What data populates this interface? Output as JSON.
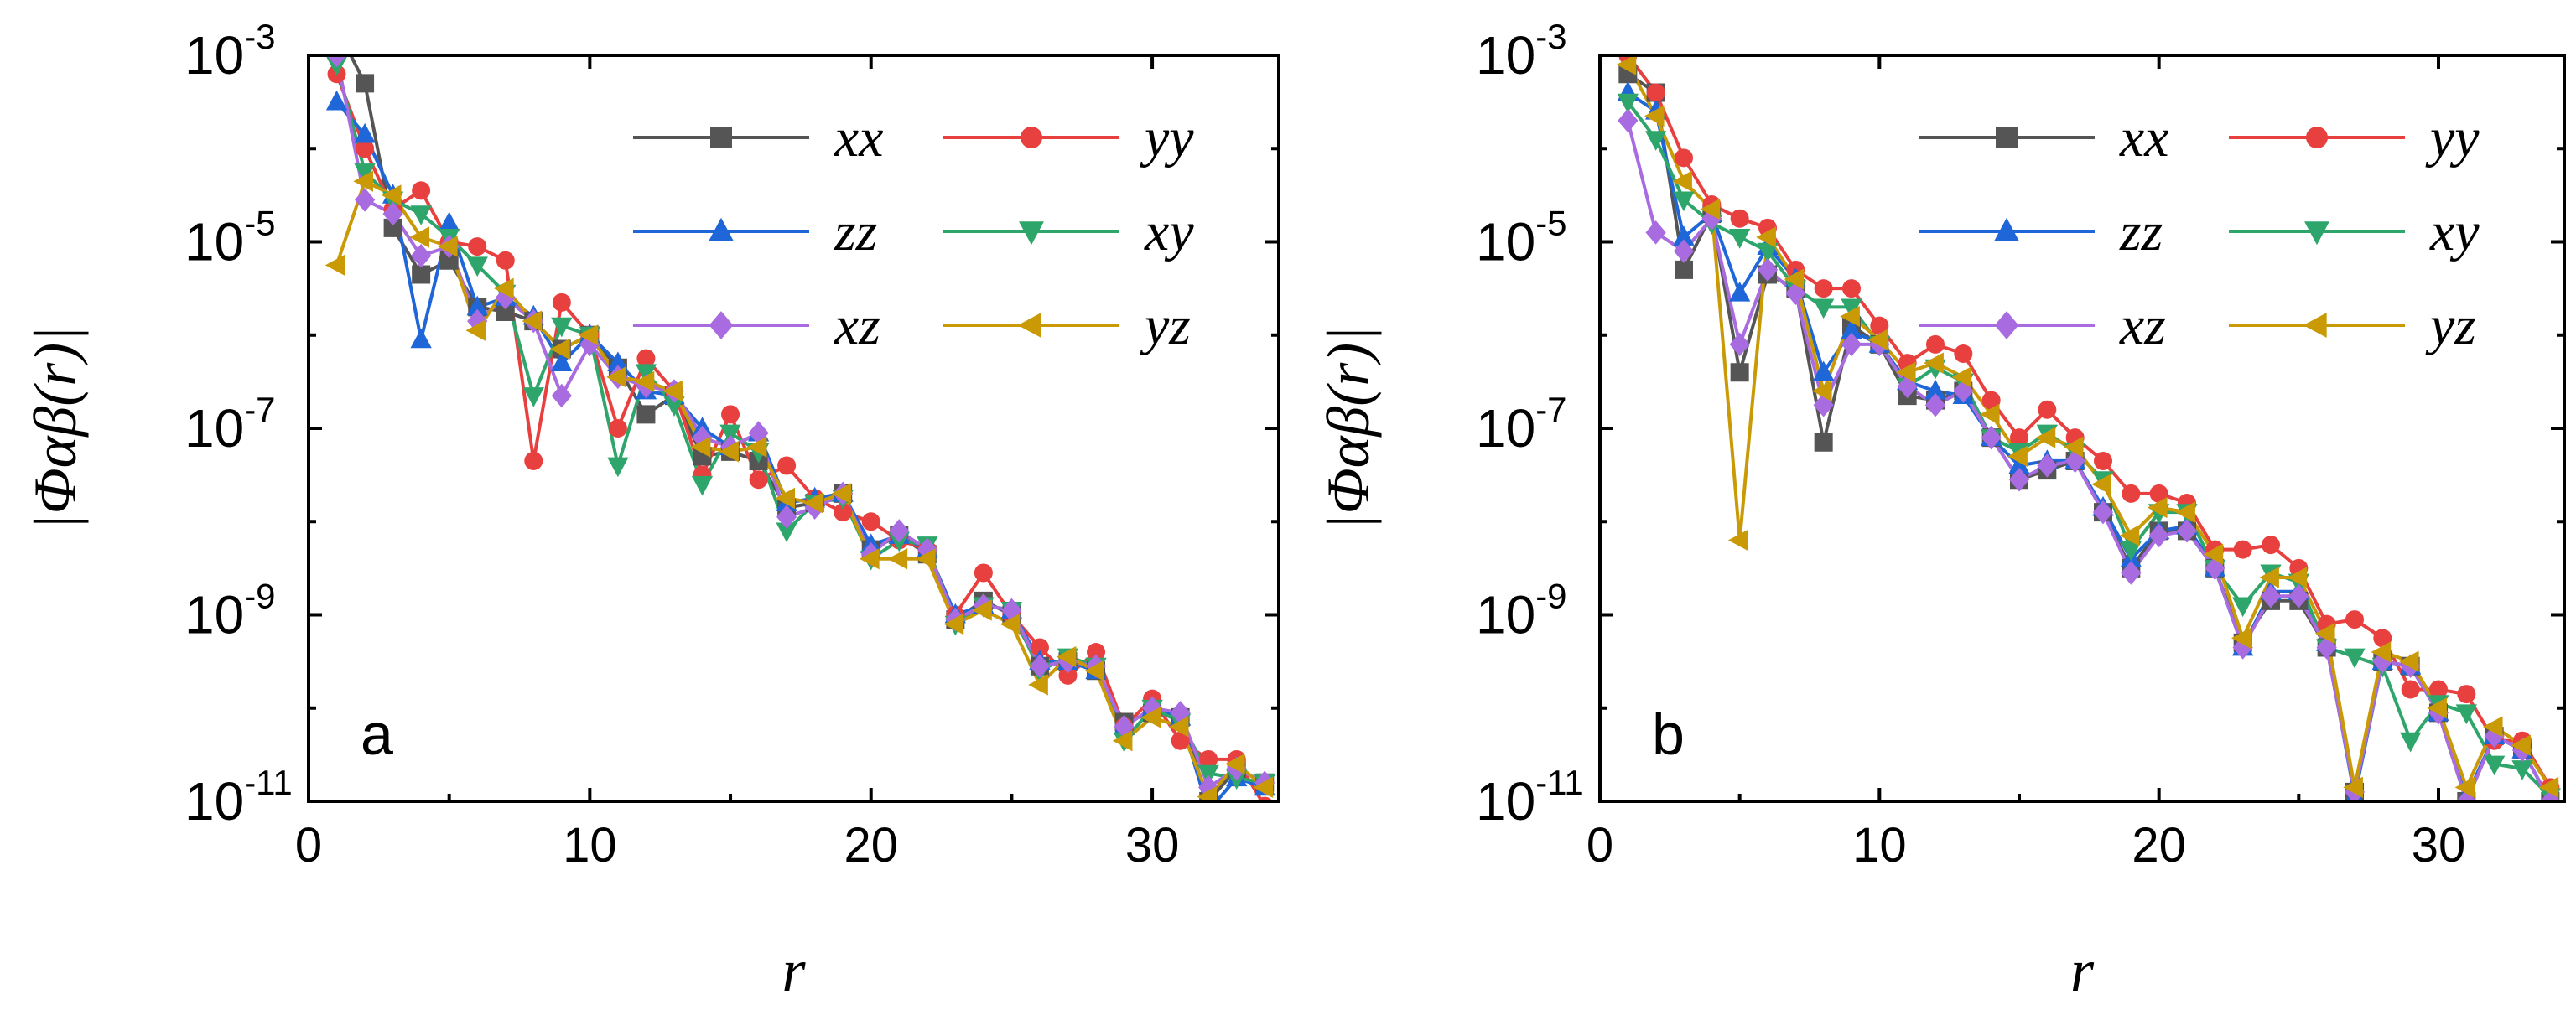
{
  "chart_data": [
    {
      "type": "line",
      "panel_label": "a",
      "xlabel": "r",
      "ylabel": "|Φαβ(r)|",
      "yscale": "log",
      "xlim": [
        0,
        34.5
      ],
      "ylim_exponent": [
        -11,
        -3
      ],
      "xticks": [
        0,
        10,
        20,
        30
      ],
      "xtick_labels": [
        "0",
        "10",
        "20",
        "30"
      ],
      "yticks_exponent": [
        -11,
        -9,
        -7,
        -5,
        -3
      ],
      "ytick_labels": [
        {
          "base": "10",
          "exp": "-11"
        },
        {
          "base": "10",
          "exp": "-9"
        },
        {
          "base": "10",
          "exp": "-7"
        },
        {
          "base": "10",
          "exp": "-5"
        },
        {
          "base": "10",
          "exp": "-3"
        }
      ],
      "legend_position": "top-right",
      "series": [
        {
          "name": "xx",
          "color": "#555555",
          "marker": "square",
          "x": [
            1,
            2,
            3,
            4,
            5,
            6,
            7,
            8,
            9,
            10,
            11,
            12,
            13,
            14,
            15,
            16,
            17,
            18,
            19,
            20,
            21,
            22,
            23,
            24,
            25,
            26,
            27,
            28,
            29,
            30,
            31,
            32,
            33,
            34
          ],
          "log10_values": [
            -2.7,
            -3.3,
            -4.85,
            -5.35,
            -5.2,
            -5.7,
            -5.75,
            -5.85,
            -6.15,
            -6.0,
            -6.35,
            -6.85,
            -6.65,
            -7.3,
            -7.25,
            -7.35,
            -7.85,
            -7.8,
            -7.7,
            -8.3,
            -8.15,
            -8.35,
            -9.05,
            -8.85,
            -9.0,
            -9.55,
            -9.5,
            -9.6,
            -10.15,
            -10.05,
            -10.1,
            -11.0,
            -10.65,
            -10.8
          ]
        },
        {
          "name": "yy",
          "color": "#e8403f",
          "marker": "circle",
          "x": [
            1,
            2,
            3,
            4,
            5,
            6,
            7,
            8,
            9,
            10,
            11,
            12,
            13,
            14,
            15,
            16,
            17,
            18,
            19,
            20,
            21,
            22,
            23,
            24,
            25,
            26,
            27,
            28,
            29,
            30,
            31,
            32,
            33,
            34
          ],
          "log10_values": [
            -3.2,
            -4.0,
            -4.65,
            -4.45,
            -5.0,
            -5.05,
            -5.2,
            -7.35,
            -5.65,
            -6.0,
            -7.0,
            -6.25,
            -6.6,
            -7.5,
            -6.85,
            -7.55,
            -7.4,
            -7.75,
            -7.9,
            -8.0,
            -8.2,
            -8.3,
            -9.0,
            -8.55,
            -9.0,
            -9.35,
            -9.65,
            -9.4,
            -10.2,
            -9.9,
            -10.35,
            -10.55,
            -10.55,
            -11.05
          ]
        },
        {
          "name": "zz",
          "color": "#1f66d9",
          "marker": "triangle-up",
          "x": [
            1,
            2,
            3,
            4,
            5,
            6,
            7,
            8,
            9,
            10,
            11,
            12,
            13,
            14,
            15,
            16,
            17,
            18,
            19,
            20,
            21,
            22,
            23,
            24,
            25,
            26,
            27,
            28,
            29,
            30,
            31,
            32,
            33,
            34
          ],
          "log10_values": [
            -3.5,
            -3.85,
            -4.5,
            -6.05,
            -4.8,
            -5.7,
            -5.6,
            -5.8,
            -6.3,
            -6.0,
            -6.3,
            -6.6,
            -6.65,
            -7.0,
            -7.2,
            -7.05,
            -7.8,
            -7.75,
            -7.7,
            -8.25,
            -8.15,
            -8.3,
            -9.0,
            -8.9,
            -8.95,
            -9.5,
            -9.5,
            -9.6,
            -10.2,
            -10.0,
            -10.1,
            -11.1,
            -10.75,
            -10.85
          ]
        },
        {
          "name": "xy",
          "color": "#2ea66b",
          "marker": "triangle-down",
          "x": [
            1,
            2,
            3,
            4,
            5,
            6,
            7,
            8,
            9,
            10,
            11,
            12,
            13,
            14,
            15,
            16,
            17,
            18,
            19,
            20,
            21,
            22,
            23,
            24,
            25,
            26,
            27,
            28,
            29,
            30,
            31,
            32,
            33,
            34
          ],
          "log10_values": [
            -3.1,
            -4.25,
            -4.55,
            -4.7,
            -4.95,
            -5.25,
            -5.55,
            -6.65,
            -5.9,
            -6.0,
            -7.4,
            -6.4,
            -6.75,
            -7.6,
            -7.05,
            -7.25,
            -8.1,
            -7.8,
            -7.75,
            -8.4,
            -8.2,
            -8.25,
            -9.1,
            -8.9,
            -8.95,
            -9.6,
            -9.45,
            -9.55,
            -10.35,
            -10.0,
            -10.15,
            -10.7,
            -10.75,
            -10.8
          ]
        },
        {
          "name": "xz",
          "color": "#a86be0",
          "marker": "diamond",
          "x": [
            1,
            2,
            3,
            4,
            5,
            6,
            7,
            8,
            9,
            10,
            11,
            12,
            13,
            14,
            15,
            16,
            17,
            18,
            19,
            20,
            21,
            22,
            23,
            24,
            25,
            26,
            27,
            28,
            29,
            30,
            31,
            32,
            33,
            34
          ],
          "log10_values": [
            -3.0,
            -4.55,
            -4.7,
            -5.15,
            -5.05,
            -5.85,
            -5.6,
            -5.85,
            -6.65,
            -6.1,
            -6.45,
            -6.55,
            -6.6,
            -7.1,
            -7.2,
            -7.05,
            -7.95,
            -7.85,
            -7.7,
            -8.35,
            -8.1,
            -8.3,
            -9.05,
            -8.9,
            -8.95,
            -9.55,
            -9.5,
            -9.55,
            -10.2,
            -10.0,
            -10.05,
            -10.85,
            -10.65,
            -10.8
          ]
        },
        {
          "name": "yz",
          "color": "#c99a06",
          "marker": "triangle-left",
          "x": [
            1,
            2,
            3,
            4,
            5,
            6,
            7,
            8,
            9,
            10,
            11,
            12,
            13,
            14,
            15,
            16,
            17,
            18,
            19,
            20,
            21,
            22,
            23,
            24,
            25,
            26,
            27,
            28,
            29,
            30,
            31,
            32,
            33,
            34
          ],
          "log10_values": [
            -5.25,
            -4.35,
            -4.5,
            -4.95,
            -5.05,
            -5.95,
            -5.5,
            -5.85,
            -6.15,
            -6.0,
            -6.45,
            -6.5,
            -6.6,
            -7.2,
            -7.25,
            -7.2,
            -7.75,
            -7.8,
            -7.7,
            -8.4,
            -8.4,
            -8.4,
            -9.1,
            -8.95,
            -9.1,
            -9.75,
            -9.45,
            -9.6,
            -10.35,
            -10.1,
            -10.2,
            -10.95,
            -10.6,
            -10.85
          ]
        }
      ]
    },
    {
      "type": "line",
      "panel_label": "b",
      "xlabel": "r",
      "ylabel": "|Φαβ(r)|",
      "yscale": "log",
      "xlim": [
        0,
        34.5
      ],
      "ylim_exponent": [
        -11,
        -3
      ],
      "xticks": [
        0,
        10,
        20,
        30
      ],
      "xtick_labels": [
        "0",
        "10",
        "20",
        "30"
      ],
      "yticks_exponent": [
        -11,
        -9,
        -7,
        -5,
        -3
      ],
      "ytick_labels": [
        {
          "base": "10",
          "exp": "-11"
        },
        {
          "base": "10",
          "exp": "-9"
        },
        {
          "base": "10",
          "exp": "-7"
        },
        {
          "base": "10",
          "exp": "-5"
        },
        {
          "base": "10",
          "exp": "-3"
        }
      ],
      "legend_position": "top-right",
      "series": [
        {
          "name": "xx",
          "color": "#555555",
          "marker": "square",
          "x": [
            1,
            2,
            3,
            4,
            5,
            6,
            7,
            8,
            9,
            10,
            11,
            12,
            13,
            14,
            15,
            16,
            17,
            18,
            19,
            20,
            21,
            22,
            23,
            24,
            25,
            26,
            27,
            28,
            29,
            30,
            31,
            32,
            33,
            34
          ],
          "log10_values": [
            -3.2,
            -3.4,
            -5.3,
            -4.7,
            -6.4,
            -5.35,
            -5.5,
            -7.15,
            -5.9,
            -6.1,
            -6.65,
            -6.7,
            -6.6,
            -7.1,
            -7.55,
            -7.45,
            -7.35,
            -7.9,
            -8.5,
            -8.1,
            -8.1,
            -8.5,
            -9.3,
            -8.85,
            -8.85,
            -9.35,
            -10.9,
            -9.5,
            -9.55,
            -10.05,
            -11.0,
            -10.3,
            -10.45,
            -11.0
          ]
        },
        {
          "name": "yy",
          "color": "#e8403f",
          "marker": "circle",
          "x": [
            1,
            2,
            3,
            4,
            5,
            6,
            7,
            8,
            9,
            10,
            11,
            12,
            13,
            14,
            15,
            16,
            17,
            18,
            19,
            20,
            21,
            22,
            23,
            24,
            25,
            26,
            27,
            28,
            29,
            30,
            31,
            32,
            33,
            34
          ],
          "log10_values": [
            -3.0,
            -3.4,
            -4.1,
            -4.6,
            -4.75,
            -4.85,
            -5.3,
            -5.5,
            -5.5,
            -5.9,
            -6.3,
            -6.1,
            -6.2,
            -6.7,
            -7.1,
            -6.8,
            -7.1,
            -7.35,
            -7.7,
            -7.7,
            -7.8,
            -8.3,
            -8.3,
            -8.25,
            -8.5,
            -9.1,
            -9.05,
            -9.25,
            -9.8,
            -9.8,
            -9.85,
            -10.35,
            -10.35,
            -10.85
          ]
        },
        {
          "name": "zz",
          "color": "#1f66d9",
          "marker": "triangle-up",
          "x": [
            1,
            2,
            3,
            4,
            5,
            6,
            7,
            8,
            9,
            10,
            11,
            12,
            13,
            14,
            15,
            16,
            17,
            18,
            19,
            20,
            21,
            22,
            23,
            24,
            25,
            26,
            27,
            28,
            29,
            30,
            31,
            32,
            33,
            34
          ],
          "log10_values": [
            -3.4,
            -3.6,
            -4.95,
            -4.7,
            -5.55,
            -5.05,
            -5.4,
            -6.4,
            -5.95,
            -6.1,
            -6.5,
            -6.6,
            -6.65,
            -7.1,
            -7.4,
            -7.35,
            -7.35,
            -7.85,
            -8.4,
            -8.1,
            -8.05,
            -8.5,
            -9.35,
            -8.75,
            -8.75,
            -9.3,
            -10.95,
            -9.5,
            -9.55,
            -10.05,
            -10.95,
            -10.3,
            -10.45,
            -11.0
          ]
        },
        {
          "name": "xy",
          "color": "#2ea66b",
          "marker": "triangle-down",
          "x": [
            1,
            2,
            3,
            4,
            5,
            6,
            7,
            8,
            9,
            10,
            11,
            12,
            13,
            14,
            15,
            16,
            17,
            18,
            19,
            20,
            21,
            22,
            23,
            24,
            25,
            26,
            27,
            28,
            29,
            30,
            31,
            32,
            33,
            34
          ],
          "log10_values": [
            -3.5,
            -3.9,
            -4.55,
            -4.8,
            -4.95,
            -5.1,
            -5.5,
            -5.7,
            -5.7,
            -6.1,
            -6.55,
            -6.35,
            -6.5,
            -7.1,
            -7.25,
            -7.05,
            -7.25,
            -7.55,
            -8.3,
            -7.9,
            -7.9,
            -8.5,
            -8.9,
            -8.55,
            -8.65,
            -9.35,
            -9.45,
            -9.55,
            -10.35,
            -9.95,
            -10.05,
            -10.6,
            -10.65,
            -10.95
          ]
        },
        {
          "name": "xz",
          "color": "#a86be0",
          "marker": "diamond",
          "x": [
            1,
            2,
            3,
            4,
            5,
            6,
            7,
            8,
            9,
            10,
            11,
            12,
            13,
            14,
            15,
            16,
            17,
            18,
            19,
            20,
            21,
            22,
            23,
            24,
            25,
            26,
            27,
            28,
            29,
            30,
            31,
            32,
            33,
            34
          ],
          "log10_values": [
            -3.7,
            -4.9,
            -5.1,
            -4.75,
            -6.1,
            -5.3,
            -5.55,
            -6.75,
            -6.1,
            -6.1,
            -6.55,
            -6.75,
            -6.6,
            -7.1,
            -7.55,
            -7.4,
            -7.35,
            -7.9,
            -8.55,
            -8.15,
            -8.1,
            -8.5,
            -9.35,
            -8.8,
            -8.8,
            -9.35,
            -10.9,
            -9.5,
            -9.55,
            -10.05,
            -11.0,
            -10.3,
            -10.45,
            -11.0
          ]
        },
        {
          "name": "yz",
          "color": "#c99a06",
          "marker": "triangle-left",
          "x": [
            1,
            2,
            3,
            4,
            5,
            6,
            7,
            8,
            9,
            10,
            11,
            12,
            13,
            14,
            15,
            16,
            17,
            18,
            19,
            20,
            21,
            22,
            23,
            24,
            25,
            26,
            27,
            28,
            29,
            30,
            31,
            32,
            33,
            34
          ],
          "log10_values": [
            -3.1,
            -3.65,
            -4.35,
            -4.65,
            -8.2,
            -4.95,
            -5.4,
            -6.6,
            -5.8,
            -6.05,
            -6.4,
            -6.3,
            -6.45,
            -6.85,
            -7.3,
            -7.1,
            -7.2,
            -7.6,
            -8.15,
            -7.85,
            -7.9,
            -8.35,
            -9.25,
            -8.6,
            -8.6,
            -9.2,
            -10.85,
            -9.4,
            -9.5,
            -10.0,
            -10.85,
            -10.2,
            -10.4,
            -10.85
          ]
        }
      ]
    }
  ]
}
